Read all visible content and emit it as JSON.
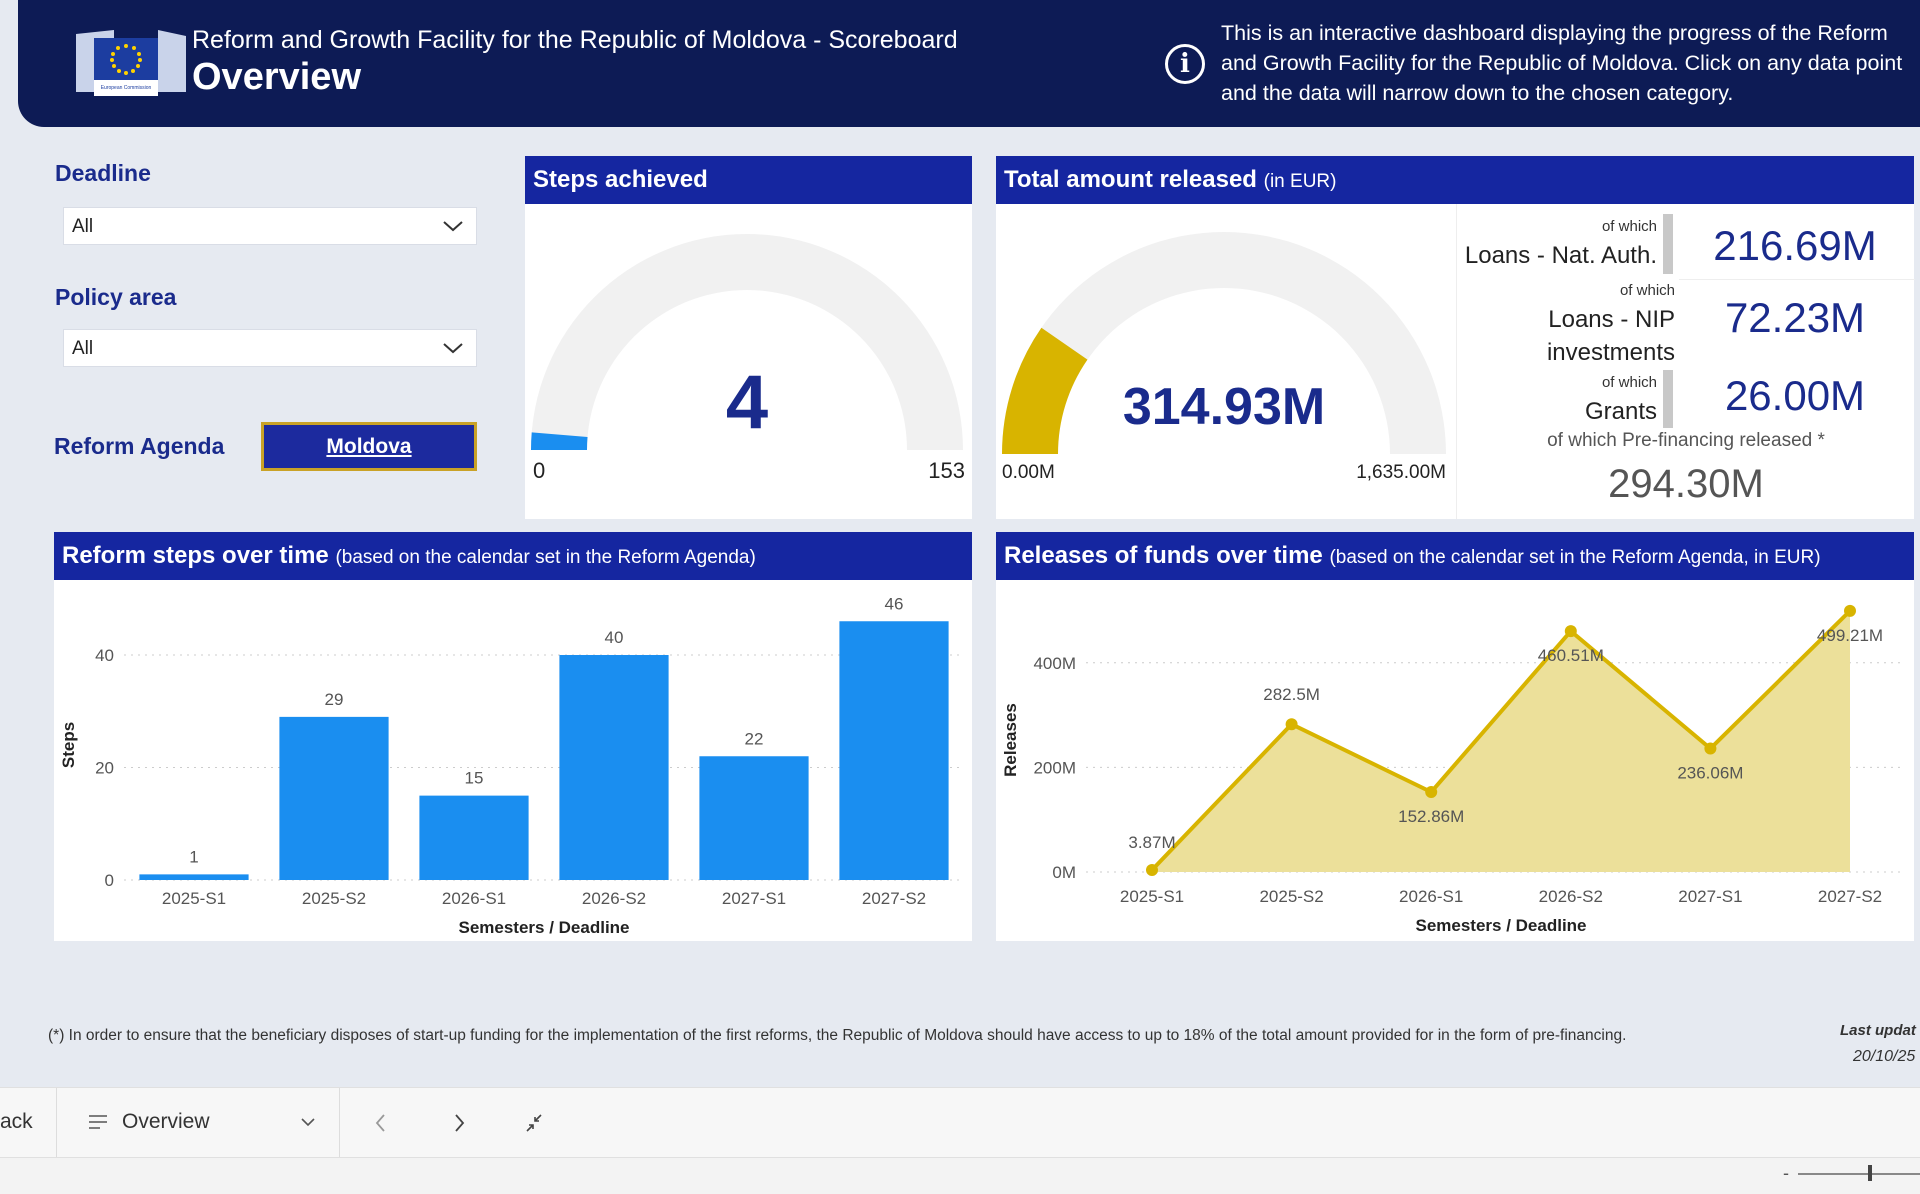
{
  "header": {
    "subtitle": "Reform and Growth Facility for the Republic of Moldova - Scoreboard",
    "title": "Overview",
    "info_text": "This is an interactive dashboard displaying the progress of the Reform and Growth Facility for the Republic of Moldova. Click on any data point and the data will narrow down to the chosen category.",
    "logo_caption": "European Commission"
  },
  "filters": {
    "deadline_label": "Deadline",
    "deadline_value": "All",
    "policy_label": "Policy area",
    "policy_value": "All",
    "reform_label": "Reform Agenda",
    "reform_button": "Moldova"
  },
  "steps_achieved": {
    "title": "Steps achieved",
    "value": "4",
    "min": "0",
    "max": "153",
    "fraction": 0.026
  },
  "total_released": {
    "title": "Total amount released",
    "unit": "(in EUR)",
    "value": "314.93M",
    "min": "0.00M",
    "max": "1,635.00M",
    "fraction": 0.1926,
    "breakdown": [
      {
        "caption": "of which",
        "label": "Loans - Nat. Auth.",
        "value": "216.69M"
      },
      {
        "caption": "of which",
        "label1": "Loans - NIP",
        "label2": "investments",
        "value": "72.23M"
      },
      {
        "caption": "of which",
        "label": "Grants",
        "value": "26.00M"
      }
    ],
    "prefin_label": "of which Pre-financing released *",
    "prefin_value": "294.30M"
  },
  "steps_chart": {
    "title": "Reform steps over time",
    "subtitle": "(based on the calendar set in the Reform Agenda)",
    "chart_data": {
      "type": "bar",
      "categories": [
        "2025-S1",
        "2025-S2",
        "2026-S1",
        "2026-S2",
        "2027-S1",
        "2027-S2"
      ],
      "values": [
        1,
        29,
        15,
        40,
        22,
        46
      ],
      "data_labels": [
        "1",
        "29",
        "15",
        "40",
        "22",
        "46"
      ],
      "yticks": [
        "0",
        "20",
        "40"
      ],
      "ytick_values": [
        0,
        20,
        40
      ],
      "ylim": [
        0,
        48
      ],
      "xlabel": "Semesters / Deadline",
      "ylabel": "Steps",
      "color": "#1a8ef0"
    }
  },
  "funds_chart": {
    "title": "Releases of funds over time",
    "subtitle": "(based on the calendar set in the Reform Agenda, in EUR)",
    "chart_data": {
      "type": "area",
      "categories": [
        "2025-S1",
        "2025-S2",
        "2026-S1",
        "2026-S2",
        "2027-S1",
        "2027-S2"
      ],
      "values": [
        3.87,
        282.5,
        152.86,
        460.51,
        236.06,
        499.21
      ],
      "data_labels": [
        "3.87M",
        "282.5M",
        "152.86M",
        "460.51M",
        "236.06M",
        "499.21M"
      ],
      "yticks": [
        "0M",
        "200M",
        "400M"
      ],
      "ytick_values": [
        0,
        200,
        400
      ],
      "ylim": [
        0,
        520
      ],
      "xlabel": "Semesters / Deadline",
      "ylabel": "Releases",
      "line_color": "#d8b400",
      "fill_color": "#ece09a"
    }
  },
  "footer": {
    "footnote": "(*) In order to ensure that the beneficiary disposes of start-up funding for the implementation of the first reforms, the Republic of Moldova should have access to up to 18% of the total amount provided for in the form of pre-financing.",
    "updated_label": "Last updat",
    "updated_value": "20/10/25"
  },
  "nav": {
    "back": "ack",
    "page": "Overview"
  },
  "colors": {
    "header_bg": "#0d1b55",
    "panel_title_bg": "#1526a0",
    "accent_blue": "#1a8ef0",
    "accent_gold": "#d8b400"
  }
}
